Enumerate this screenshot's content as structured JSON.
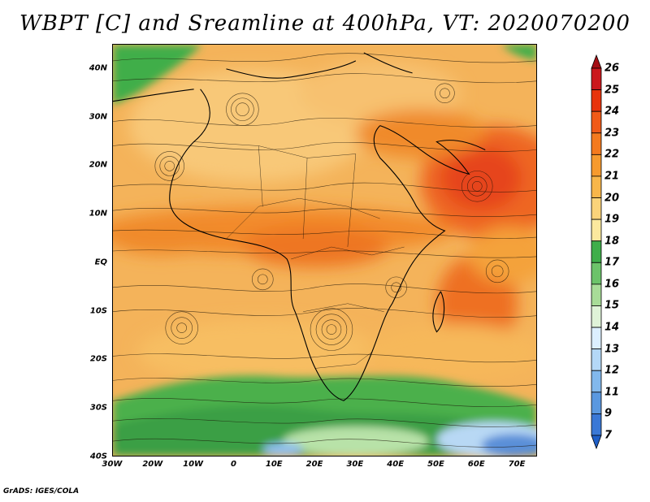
{
  "title": "WBPT [C] and Sreamline at 400hPa, VT: 2020070200",
  "credit": "GrADS: IGES/COLA",
  "map": {
    "lat_labels": [
      "40N",
      "30N",
      "20N",
      "10N",
      "EQ",
      "10S",
      "20S",
      "30S",
      "40S"
    ],
    "lon_labels": [
      "30W",
      "20W",
      "10W",
      "0",
      "10E",
      "20E",
      "30E",
      "40E",
      "50E",
      "60E",
      "70E"
    ],
    "lat_range": [
      -40,
      45
    ],
    "lon_range": [
      -30,
      75
    ]
  },
  "colorbar": {
    "labels": [
      "26",
      "25",
      "24",
      "23",
      "22",
      "21",
      "20",
      "19",
      "18",
      "17",
      "16",
      "15",
      "14",
      "13",
      "12",
      "11",
      "9",
      "7"
    ],
    "colors": [
      "#a50f15",
      "#cb181d",
      "#e8340c",
      "#f05a17",
      "#f47a1e",
      "#f69a2e",
      "#f8b64a",
      "#fad37a",
      "#fbe89e",
      "#3fae4a",
      "#6cc36a",
      "#a8dc98",
      "#dff3d8",
      "#dcefff",
      "#b4d8f7",
      "#82b8ec",
      "#5a98e0",
      "#3a78d6",
      "#1f5fc8"
    ]
  }
}
